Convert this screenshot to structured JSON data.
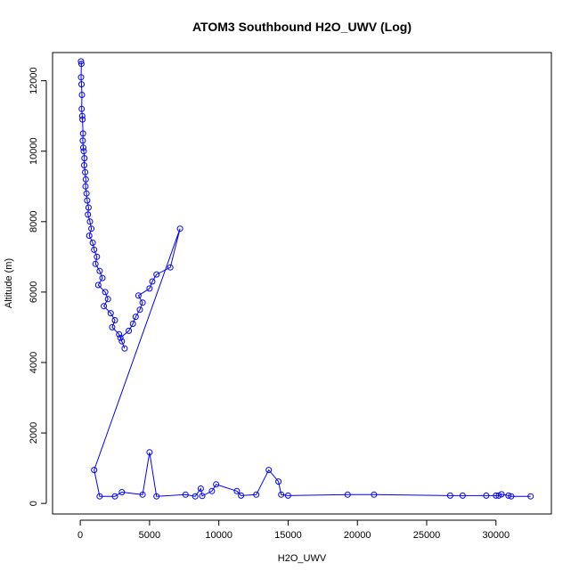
{
  "chart_data": {
    "type": "line",
    "title": "ATOM3 Southbound H2O_UWV (Log)",
    "xlabel": "H2O_UWV",
    "ylabel": "Altitude (m)",
    "xlim": [
      -2000,
      34000
    ],
    "ylim": [
      -300,
      12800
    ],
    "x_ticks": [
      0,
      5000,
      10000,
      15000,
      20000,
      25000,
      30000
    ],
    "y_ticks": [
      0,
      2000,
      4000,
      6000,
      8000,
      10000,
      12000
    ],
    "grid": false,
    "line_color": "#0000ff",
    "marker": "open-circle",
    "series": [
      {
        "x": [
          50,
          80,
          60,
          90,
          120,
          100,
          140,
          160,
          200,
          180,
          220,
          250,
          300,
          280,
          350,
          400,
          380,
          450,
          500,
          600,
          550,
          700,
          800,
          650,
          900,
          1000,
          1200,
          1100,
          1400,
          1600,
          1300,
          1800,
          2000,
          1700,
          2200,
          2500,
          2300,
          2800,
          3000,
          3200,
          2900,
          3500,
          3800,
          4000,
          4300,
          4500,
          4200,
          5000,
          5200,
          5500,
          6500,
          7200,
          1000,
          1400,
          2500,
          3000,
          4500,
          5000,
          5500,
          7600,
          8300,
          8700,
          8800,
          9500,
          9800,
          11300,
          11600,
          12700,
          13600,
          14300,
          14500,
          15000,
          19300,
          21200,
          26700,
          27600,
          29300,
          30000,
          30200,
          30400,
          30900,
          31100,
          32500
        ],
        "y": [
          12550,
          12480,
          12100,
          11900,
          11600,
          11200,
          11000,
          10900,
          10500,
          10300,
          10100,
          10000,
          9800,
          9600,
          9400,
          9200,
          9000,
          8800,
          8600,
          8400,
          8200,
          8000,
          7800,
          7600,
          7400,
          7200,
          7000,
          6800,
          6600,
          6400,
          6200,
          6000,
          5800,
          5600,
          5400,
          5200,
          5000,
          4800,
          4600,
          4400,
          4700,
          4900,
          5100,
          5300,
          5500,
          5700,
          5900,
          6100,
          6300,
          6500,
          6700,
          7800,
          950,
          200,
          200,
          320,
          250,
          1450,
          200,
          250,
          200,
          420,
          210,
          350,
          540,
          350,
          220,
          250,
          950,
          620,
          250,
          220,
          250,
          250,
          220,
          220,
          220,
          220,
          220,
          260,
          220,
          200,
          200
        ]
      }
    ]
  }
}
